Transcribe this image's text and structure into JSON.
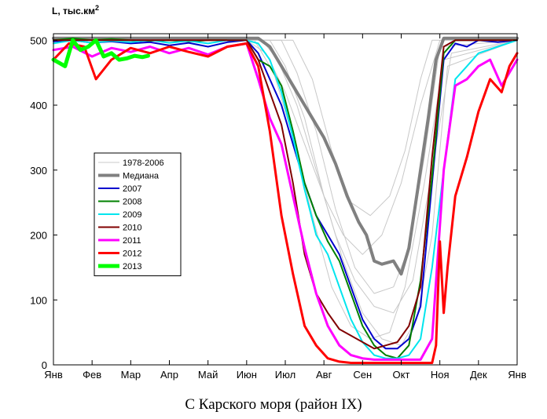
{
  "chart_data": {
    "type": "line",
    "title": "",
    "ylabel": "L, тыс.км",
    "ylabel_sup": "2",
    "xlabel": "",
    "ylim": [
      0,
      510
    ],
    "yticks": [
      0,
      100,
      200,
      300,
      400,
      500
    ],
    "xlim": [
      0,
      12
    ],
    "xticks": [
      "Янв",
      "Фев",
      "Мар",
      "Апр",
      "Май",
      "Июн",
      "Июл",
      "Авг",
      "Сен",
      "Окт",
      "Ноя",
      "Дек",
      "Янв"
    ],
    "legend_position": "center-left",
    "series": [
      {
        "name": "1978-2006",
        "color": "#c8c8c8",
        "width": 1,
        "x": [
          0,
          5.0,
          5.5,
          6.0,
          6.5,
          7.0,
          7.5,
          8.0,
          8.5,
          9.0,
          9.5,
          10.0,
          12
        ],
        "y": [
          500,
          500,
          480,
          420,
          340,
          260,
          200,
          170,
          200,
          280,
          400,
          500,
          500
        ]
      },
      {
        "name": "1978-2006",
        "color": "#c8c8c8",
        "width": 1,
        "x": [
          0,
          5.4,
          5.8,
          6.3,
          6.8,
          7.3,
          7.8,
          8.3,
          8.8,
          9.3,
          9.8,
          10.3,
          12
        ],
        "y": [
          500,
          500,
          470,
          400,
          300,
          200,
          130,
          90,
          80,
          130,
          300,
          480,
          500
        ]
      },
      {
        "name": "1978-2006",
        "color": "#c8c8c8",
        "width": 1,
        "x": [
          0,
          5.6,
          6.0,
          6.5,
          7.0,
          7.5,
          8.0,
          8.5,
          9.0,
          9.4,
          9.8,
          10.2,
          12
        ],
        "y": [
          500,
          500,
          460,
          380,
          260,
          160,
          80,
          40,
          30,
          70,
          200,
          460,
          500
        ]
      },
      {
        "name": "1978-2006",
        "color": "#c8c8c8",
        "width": 1,
        "x": [
          0,
          5.9,
          6.3,
          6.8,
          7.3,
          7.8,
          8.3,
          8.8,
          9.2,
          9.6,
          10.0,
          12
        ],
        "y": [
          500,
          500,
          450,
          360,
          240,
          150,
          110,
          120,
          180,
          320,
          490,
          500
        ]
      },
      {
        "name": "1978-2006",
        "color": "#c8c8c8",
        "width": 1,
        "x": [
          0,
          6.2,
          6.7,
          7.2,
          7.7,
          8.2,
          8.7,
          9.1,
          9.5,
          9.8,
          12
        ],
        "y": [
          500,
          500,
          440,
          330,
          250,
          230,
          260,
          330,
          440,
          500,
          500
        ]
      },
      {
        "name": "1978-2006",
        "color": "#c8c8c8",
        "width": 1,
        "x": [
          0,
          5.2,
          5.7,
          6.2,
          6.7,
          7.2,
          7.7,
          8.2,
          8.7,
          9.1,
          9.6,
          10.1,
          12
        ],
        "y": [
          500,
          500,
          450,
          350,
          230,
          120,
          60,
          40,
          50,
          120,
          280,
          470,
          500
        ]
      },
      {
        "name": "Медиана",
        "color": "#808080",
        "width": 4,
        "x": [
          0,
          5.3,
          5.6,
          5.9,
          6.2,
          6.5,
          6.8,
          7.0,
          7.3,
          7.6,
          7.9,
          8.1,
          8.3,
          8.5,
          8.8,
          9.0,
          9.2,
          9.4,
          9.7,
          9.9,
          10.1,
          12
        ],
        "y": [
          503,
          503,
          490,
          460,
          430,
          400,
          370,
          350,
          310,
          260,
          220,
          200,
          160,
          155,
          160,
          140,
          180,
          260,
          380,
          470,
          503,
          503
        ]
      },
      {
        "name": "2007",
        "color": "#0000cd",
        "width": 2,
        "x": [
          0,
          0.5,
          1.0,
          1.5,
          2.0,
          2.5,
          3.0,
          3.5,
          4.0,
          4.5,
          5.0,
          5.3,
          5.6,
          5.9,
          6.2,
          6.5,
          6.8,
          7.1,
          7.4,
          7.7,
          8.0,
          8.3,
          8.6,
          8.9,
          9.2,
          9.5,
          9.8,
          10.1,
          10.4,
          10.7,
          11.0,
          11.5,
          12
        ],
        "y": [
          498,
          500,
          496,
          498,
          495,
          497,
          492,
          496,
          490,
          497,
          500,
          480,
          440,
          400,
          340,
          280,
          230,
          200,
          170,
          120,
          70,
          40,
          25,
          25,
          40,
          90,
          280,
          470,
          495,
          490,
          500,
          497,
          500
        ]
      },
      {
        "name": "2008",
        "color": "#008000",
        "width": 2,
        "x": [
          0,
          0.5,
          1.0,
          1.5,
          2.0,
          2.5,
          3.0,
          3.5,
          4.0,
          4.5,
          5.0,
          5.3,
          5.6,
          5.9,
          6.2,
          6.5,
          6.8,
          7.1,
          7.4,
          7.7,
          8.0,
          8.3,
          8.6,
          8.9,
          9.2,
          9.5,
          9.8,
          10.1,
          10.4,
          10.7,
          11.0,
          11.5,
          12
        ],
        "y": [
          500,
          503,
          500,
          502,
          500,
          499,
          500,
          498,
          500,
          500,
          500,
          470,
          460,
          430,
          360,
          280,
          230,
          190,
          160,
          110,
          60,
          30,
          15,
          10,
          30,
          130,
          290,
          480,
          500,
          500,
          500,
          500,
          500
        ]
      },
      {
        "name": "2009",
        "color": "#00e5ee",
        "width": 2,
        "x": [
          0,
          0.5,
          1.0,
          1.5,
          2.0,
          2.5,
          3.0,
          3.5,
          4.0,
          4.5,
          5.0,
          5.3,
          5.6,
          5.9,
          6.2,
          6.5,
          6.8,
          7.1,
          7.4,
          7.7,
          8.0,
          8.3,
          8.6,
          8.9,
          9.2,
          9.5,
          9.8,
          10.1,
          10.4,
          10.7,
          11.0,
          11.5,
          12
        ],
        "y": [
          495,
          500,
          496,
          499,
          497,
          500,
          496,
          499,
          495,
          500,
          500,
          495,
          470,
          420,
          350,
          270,
          200,
          170,
          120,
          70,
          35,
          15,
          10,
          10,
          15,
          40,
          150,
          300,
          440,
          460,
          480,
          490,
          500
        ]
      },
      {
        "name": "2010",
        "color": "#800000",
        "width": 2,
        "x": [
          0,
          0.5,
          1.0,
          1.5,
          2.0,
          2.5,
          3.0,
          3.5,
          4.0,
          4.5,
          5.0,
          5.3,
          5.6,
          5.9,
          6.2,
          6.5,
          6.8,
          7.1,
          7.4,
          7.7,
          8.0,
          8.3,
          8.6,
          8.9,
          9.2,
          9.5,
          9.8,
          10.1,
          10.4,
          10.7,
          11.0,
          11.5,
          12
        ],
        "y": [
          500,
          500,
          500,
          500,
          500,
          500,
          500,
          500,
          500,
          500,
          500,
          470,
          420,
          370,
          280,
          170,
          110,
          80,
          55,
          45,
          35,
          25,
          30,
          35,
          60,
          120,
          320,
          490,
          500,
          500,
          500,
          500,
          500
        ]
      },
      {
        "name": "2011",
        "color": "#ff00ff",
        "width": 3,
        "x": [
          0,
          0.5,
          1.0,
          1.5,
          2.0,
          2.5,
          3.0,
          3.5,
          4.0,
          4.5,
          5.0,
          5.3,
          5.6,
          5.9,
          6.2,
          6.5,
          6.8,
          7.1,
          7.4,
          7.7,
          8.0,
          8.3,
          8.6,
          8.9,
          9.2,
          9.5,
          9.8,
          10.1,
          10.4,
          10.7,
          11.0,
          11.3,
          11.6,
          12
        ],
        "y": [
          485,
          490,
          475,
          488,
          482,
          490,
          480,
          488,
          478,
          490,
          495,
          440,
          380,
          340,
          260,
          180,
          110,
          60,
          30,
          15,
          10,
          8,
          8,
          8,
          8,
          8,
          40,
          300,
          430,
          440,
          460,
          470,
          430,
          470
        ]
      },
      {
        "name": "2012",
        "color": "#ff0000",
        "width": 3,
        "x": [
          0,
          0.4,
          0.8,
          1.1,
          1.5,
          2.0,
          2.5,
          3.0,
          3.5,
          4.0,
          4.5,
          5.0,
          5.3,
          5.6,
          5.9,
          6.2,
          6.5,
          6.8,
          7.1,
          7.4,
          7.7,
          8.0,
          8.3,
          8.6,
          8.9,
          9.2,
          9.5,
          9.8,
          9.9,
          10.0,
          10.1,
          10.2,
          10.4,
          10.7,
          11.0,
          11.3,
          11.6,
          11.8,
          12
        ],
        "y": [
          470,
          495,
          490,
          440,
          470,
          488,
          480,
          490,
          482,
          475,
          490,
          495,
          460,
          360,
          230,
          140,
          60,
          30,
          10,
          5,
          3,
          3,
          3,
          3,
          3,
          3,
          3,
          3,
          30,
          190,
          80,
          150,
          260,
          320,
          390,
          440,
          420,
          460,
          480
        ]
      },
      {
        "name": "2013",
        "color": "#00ff00",
        "width": 5,
        "x": [
          0,
          0.15,
          0.3,
          0.5,
          0.7,
          0.9,
          1.1,
          1.3,
          1.5,
          1.7,
          1.9,
          2.1,
          2.3,
          2.45
        ],
        "y": [
          470,
          465,
          460,
          500,
          485,
          490,
          500,
          475,
          480,
          470,
          472,
          476,
          474,
          476
        ]
      }
    ]
  },
  "caption": "С Карского моря (район IX)"
}
